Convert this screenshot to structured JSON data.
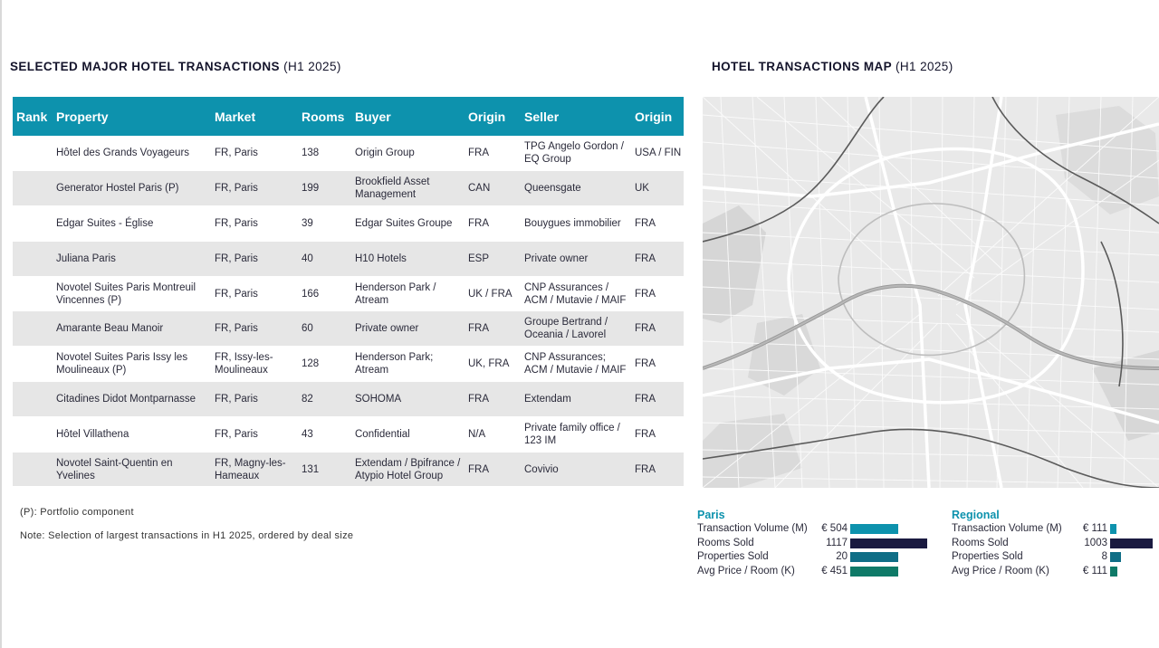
{
  "transactions": {
    "title": "SELECTED MAJOR HOTEL TRANSACTIONS",
    "period": "(H1 2025)",
    "columns": [
      "Rank",
      "Property",
      "Market",
      "Rooms",
      "Buyer",
      "Origin",
      "Seller",
      "Origin"
    ],
    "rows": [
      {
        "rank": "",
        "property": "Hôtel des Grands Voyageurs",
        "market": "FR, Paris",
        "rooms": "138",
        "buyer": "Origin Group",
        "buyer_origin": "FRA",
        "seller": "TPG Angelo Gordon / EQ Group",
        "seller_origin": "USA / FIN"
      },
      {
        "rank": "",
        "property": "Generator Hostel Paris (P)",
        "market": "FR, Paris",
        "rooms": "199",
        "buyer": "Brookfield Asset Management",
        "buyer_origin": "CAN",
        "seller": "Queensgate",
        "seller_origin": "UK"
      },
      {
        "rank": "",
        "property": "Edgar Suites - Église",
        "market": "FR, Paris",
        "rooms": "39",
        "buyer": "Edgar Suites Groupe",
        "buyer_origin": "FRA",
        "seller": "Bouygues immobilier",
        "seller_origin": "FRA"
      },
      {
        "rank": "",
        "property": "Juliana Paris",
        "market": "FR, Paris",
        "rooms": "40",
        "buyer": "H10 Hotels",
        "buyer_origin": "ESP",
        "seller": "Private owner",
        "seller_origin": "FRA"
      },
      {
        "rank": "",
        "property": "Novotel Suites Paris Montreuil Vincennes (P)",
        "market": "FR, Paris",
        "rooms": "166",
        "buyer": "Henderson Park / Atream",
        "buyer_origin": "UK / FRA",
        "seller": "CNP Assurances / ACM / Mutavie / MAIF",
        "seller_origin": "FRA"
      },
      {
        "rank": "",
        "property": "Amarante Beau Manoir",
        "market": "FR, Paris",
        "rooms": "60",
        "buyer": "Private owner",
        "buyer_origin": "FRA",
        "seller": "Groupe Bertrand / Oceania / Lavorel",
        "seller_origin": "FRA"
      },
      {
        "rank": "",
        "property": "Novotel Suites Paris Issy les Moulineaux (P)",
        "market": "FR, Issy-les-Moulineaux",
        "rooms": "128",
        "buyer": "Henderson Park; Atream",
        "buyer_origin": "UK, FRA",
        "seller": "CNP Assurances; ACM / Mutavie / MAIF",
        "seller_origin": "FRA"
      },
      {
        "rank": "",
        "property": "Citadines Didot Montparnasse",
        "market": "FR, Paris",
        "rooms": "82",
        "buyer": "SOHOMA",
        "buyer_origin": "FRA",
        "seller": "Extendam",
        "seller_origin": "FRA"
      },
      {
        "rank": "",
        "property": "Hôtel Villathena",
        "market": "FR, Paris",
        "rooms": "43",
        "buyer": "Confidential",
        "buyer_origin": "N/A",
        "seller": "Private family office / 123 IM",
        "seller_origin": "FRA"
      },
      {
        "rank": "",
        "property": "Novotel Saint-Quentin en Yvelines",
        "market": "FR, Magny-les-Hameaux",
        "rooms": "131",
        "buyer": "Extendam / Bpifrance / Atypio Hotel Group",
        "buyer_origin": "FRA",
        "seller": "Covivio",
        "seller_origin": "FRA"
      }
    ],
    "footnote_portfolio": "(P): Portfolio component",
    "footnote_note": "Note: Selection of largest transactions in H1 2025, ordered by deal size"
  },
  "map": {
    "title": "HOTEL TRANSACTIONS MAP",
    "period": "(H1 2025)"
  },
  "stats": {
    "paris": {
      "heading": "Paris",
      "rows": [
        {
          "label": "Transaction Volume (M)",
          "value": "€ 504",
          "bar_fraction": 0.62,
          "color": "#0d92ad"
        },
        {
          "label": "Rooms Sold",
          "value": "1117",
          "bar_fraction": 1.0,
          "color": "#1a1a40"
        },
        {
          "label": "Properties Sold",
          "value": "20",
          "bar_fraction": 0.62,
          "color": "#0f6e86"
        },
        {
          "label": "Avg Price / Room (K)",
          "value": "€ 451",
          "bar_fraction": 0.62,
          "color": "#0f7a68"
        }
      ]
    },
    "regional": {
      "heading": "Regional",
      "rows": [
        {
          "label": "Transaction Volume (M)",
          "value": "€ 111",
          "bar_fraction": 0.14,
          "color": "#0d92ad"
        },
        {
          "label": "Rooms Sold",
          "value": "1003",
          "bar_fraction": 1.0,
          "color": "#1a1a40"
        },
        {
          "label": "Properties Sold",
          "value": "8",
          "bar_fraction": 0.25,
          "color": "#0f6e86"
        },
        {
          "label": "Avg Price / Room (K)",
          "value": "€ 111",
          "bar_fraction": 0.16,
          "color": "#0f7a68"
        }
      ]
    }
  }
}
